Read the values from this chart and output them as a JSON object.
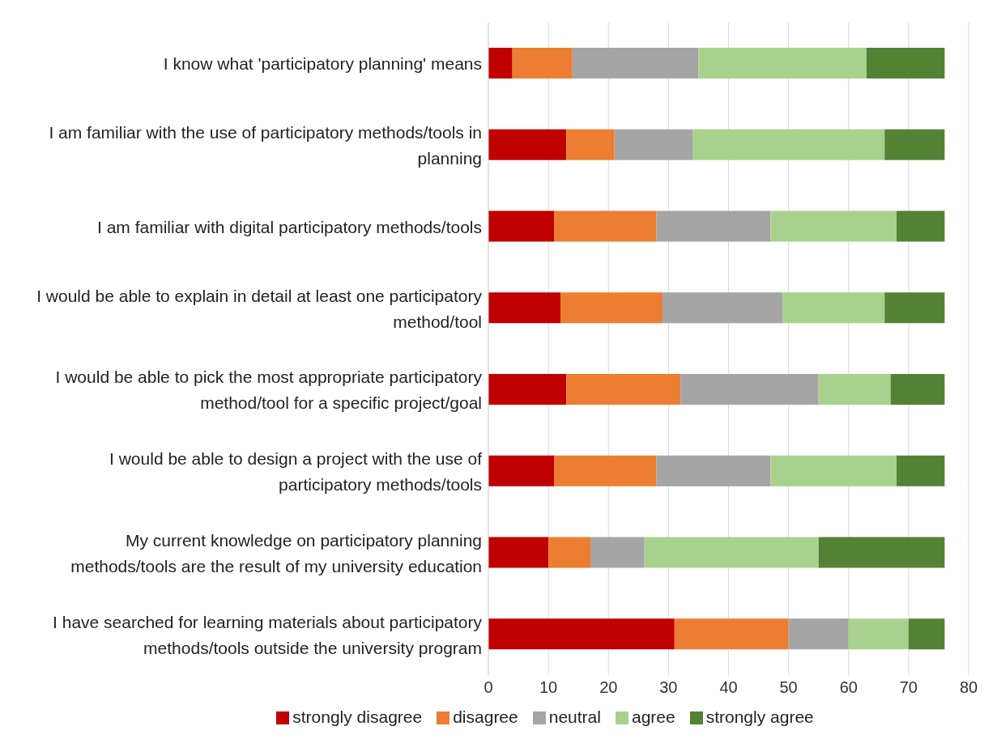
{
  "chart_data": {
    "type": "bar",
    "orientation": "horizontal",
    "stacked": true,
    "categories": [
      "I  know what 'participatory planning' means",
      "I am familiar with the use of participatory methods/tools in planning",
      "I am familiar with digital participatory methods/tools",
      "I would be able to explain in detail at least one participatory method/tool",
      "I would be able to pick the most appropriate participatory method/tool for a specific project/goal",
      "I would be able to design a project with the use of participatory methods/tools",
      "My current knowledge on participatory planning methods/tools are the result of my university education",
      "I have searched for learning materials about participatory methods/tools outside the university program"
    ],
    "series": [
      {
        "name": "strongly disagree",
        "color": "#c00000",
        "values": [
          4,
          13,
          11,
          12,
          13,
          11,
          10,
          31
        ]
      },
      {
        "name": "disagree",
        "color": "#ed7d31",
        "values": [
          10,
          8,
          17,
          17,
          19,
          17,
          7,
          19
        ]
      },
      {
        "name": "neutral",
        "color": "#a5a5a5",
        "values": [
          21,
          13,
          19,
          20,
          23,
          19,
          9,
          10
        ]
      },
      {
        "name": "agree",
        "color": "#a9d18e",
        "values": [
          28,
          32,
          21,
          17,
          12,
          21,
          29,
          10
        ]
      },
      {
        "name": "strongly agree",
        "color": "#548235",
        "values": [
          13,
          10,
          8,
          10,
          9,
          8,
          21,
          6
        ]
      }
    ],
    "xlim": [
      0,
      80
    ],
    "xticks": [
      0,
      10,
      20,
      30,
      40,
      50,
      60,
      70,
      80
    ],
    "grid": "x",
    "legend": "bottom"
  }
}
